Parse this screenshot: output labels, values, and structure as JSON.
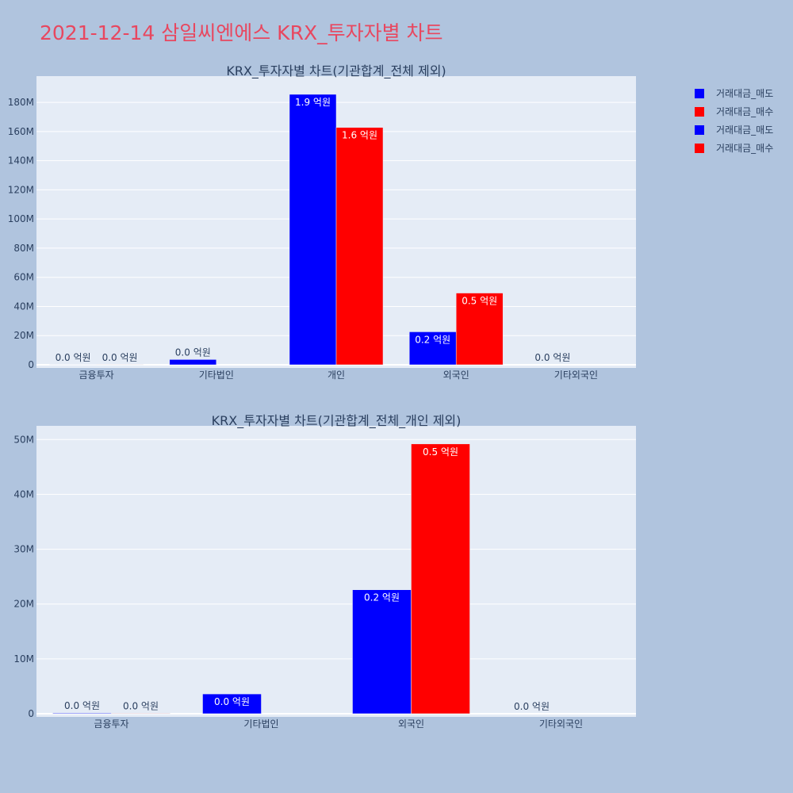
{
  "page": {
    "title": "2021-12-14 삼일씨엔에스 KRX_투자자별 차트"
  },
  "legend": [
    {
      "label": "거래대금_매도",
      "color": "#0000ff"
    },
    {
      "label": "거래대금_매수",
      "color": "#ff0000"
    },
    {
      "label": "거래대금_매도",
      "color": "#0000ff"
    },
    {
      "label": "거래대금_매수",
      "color": "#ff0000"
    }
  ],
  "chart_data": [
    {
      "type": "bar",
      "title": "KRX_투자자별 차트(기관합계_전체 제외)",
      "categories": [
        "금융투자",
        "기타법인",
        "개인",
        "외국인",
        "기타외국인"
      ],
      "ylim": [
        0,
        198000000
      ],
      "yticks": [
        0,
        20000000,
        40000000,
        60000000,
        80000000,
        100000000,
        120000000,
        140000000,
        160000000,
        180000000
      ],
      "ytick_labels": [
        "0",
        "20M",
        "40M",
        "60M",
        "80M",
        "100M",
        "120M",
        "140M",
        "160M",
        "180M"
      ],
      "series": [
        {
          "name": "거래대금_매도",
          "color": "#0000ff",
          "values": [
            120000,
            3600000,
            185500000,
            22600000,
            0
          ],
          "labels": [
            "0.0 억원",
            "0.0 억원",
            "1.9 억원",
            "0.2 억원",
            "0.0 억원"
          ]
        },
        {
          "name": "거래대금_매수",
          "color": "#ff0000",
          "values": [
            80000,
            0,
            162800000,
            49200000,
            0
          ],
          "labels": [
            "0.0 억원",
            "",
            "1.6 억원",
            "0.5 억원",
            ""
          ]
        }
      ]
    },
    {
      "type": "bar",
      "title": "KRX_투자자별 차트(기관합계_전체_개인 제외)",
      "categories": [
        "금융투자",
        "기타법인",
        "외국인",
        "기타외국인"
      ],
      "ylim": [
        0,
        52500000
      ],
      "yticks": [
        0,
        10000000,
        20000000,
        30000000,
        40000000,
        50000000
      ],
      "ytick_labels": [
        "0",
        "10M",
        "20M",
        "30M",
        "40M",
        "50M"
      ],
      "series": [
        {
          "name": "거래대금_매도",
          "color": "#0000ff",
          "values": [
            120000,
            3600000,
            22600000,
            0
          ],
          "labels": [
            "0.0 억원",
            "0.0 억원",
            "0.2 억원",
            "0.0 억원"
          ]
        },
        {
          "name": "거래대금_매수",
          "color": "#ff0000",
          "values": [
            80000,
            0,
            49200000,
            0
          ],
          "labels": [
            "0.0 억원",
            "",
            "0.5 억원",
            ""
          ]
        }
      ]
    }
  ]
}
